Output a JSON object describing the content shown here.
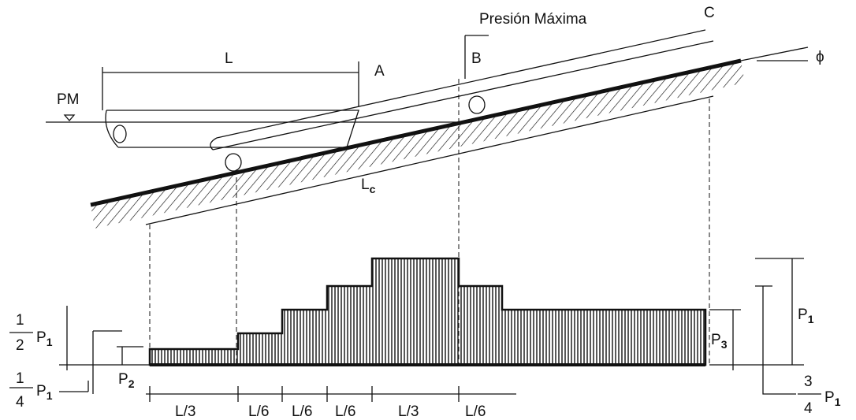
{
  "top_labels": {
    "max_pressure": "Presión Máxima",
    "length": "L",
    "point_a": "A",
    "point_b": "B",
    "point_c": "C",
    "pm": "PM",
    "slope_angle": "ϕ",
    "slope_length": {
      "base": "L",
      "sub": "c"
    }
  },
  "load_labels": {
    "half_p1": {
      "num": "1",
      "den": "2",
      "base": "P",
      "sub": "1"
    },
    "quarter_p1": {
      "num": "1",
      "den": "4",
      "base": "P",
      "sub": "1"
    },
    "three_quarter_p1": {
      "num": "3",
      "den": "4",
      "base": "P",
      "sub": "1"
    },
    "p1": {
      "base": "P",
      "sub": "1"
    },
    "p2": {
      "base": "P",
      "sub": "2"
    },
    "p3": {
      "base": "P",
      "sub": "3"
    }
  },
  "segments": [
    "L/3",
    "L/6",
    "L/6",
    "L/6",
    "L/3",
    "L/6"
  ]
}
